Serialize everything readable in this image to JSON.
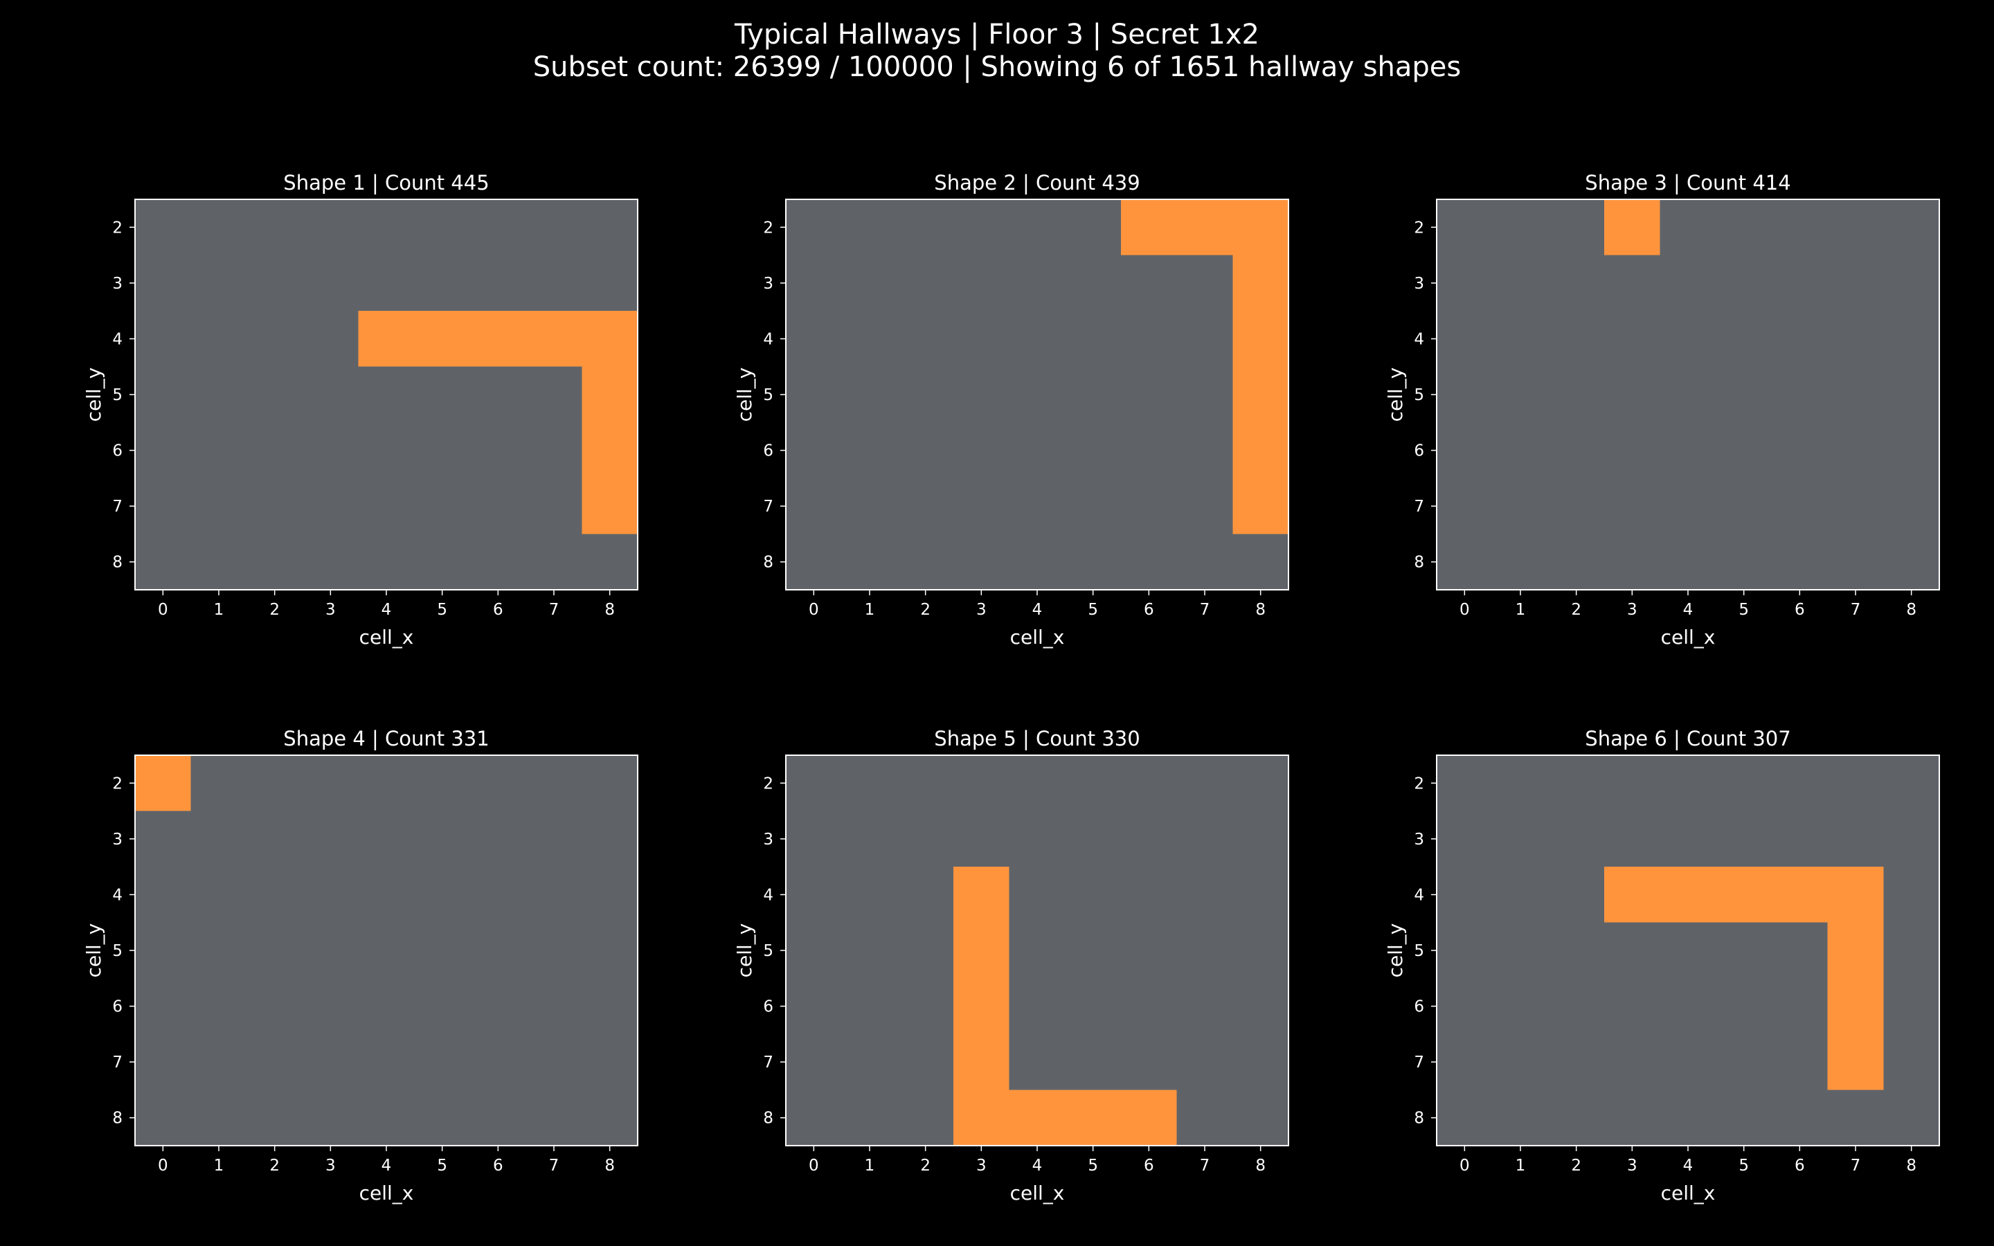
{
  "figure": {
    "title_line1": "Typical Hallways | Floor 3 | Secret 1x2",
    "title_line2": "Subset count: 26399 / 100000 | Showing 6 of 1651 hallway shapes"
  },
  "colors": {
    "background": "#000000",
    "grid_empty": "#5f6368",
    "hallway": "#ff943d",
    "text": "#ffffff",
    "axes_frame": "#ffffff"
  },
  "chart_data": [
    {
      "type": "heatmap",
      "title": "Shape 1 | Count 445",
      "xlabel": "cell_x",
      "ylabel": "cell_y",
      "x_ticks": [
        0,
        1,
        2,
        3,
        4,
        5,
        6,
        7,
        8
      ],
      "y_ticks": [
        2,
        3,
        4,
        5,
        6,
        7,
        8
      ],
      "xlim": [
        -0.5,
        8.5
      ],
      "ylim": [
        1.5,
        8.5
      ],
      "y_inverted": true,
      "cells": [
        [
          4,
          4
        ],
        [
          5,
          4
        ],
        [
          6,
          4
        ],
        [
          7,
          4
        ],
        [
          8,
          4
        ],
        [
          8,
          5
        ],
        [
          8,
          6
        ],
        [
          8,
          7
        ]
      ]
    },
    {
      "type": "heatmap",
      "title": "Shape 2 | Count 439",
      "xlabel": "cell_x",
      "ylabel": "cell_y",
      "x_ticks": [
        0,
        1,
        2,
        3,
        4,
        5,
        6,
        7,
        8
      ],
      "y_ticks": [
        2,
        3,
        4,
        5,
        6,
        7,
        8
      ],
      "xlim": [
        -0.5,
        8.5
      ],
      "ylim": [
        1.5,
        8.5
      ],
      "y_inverted": true,
      "cells": [
        [
          6,
          2
        ],
        [
          7,
          2
        ],
        [
          8,
          2
        ],
        [
          8,
          3
        ],
        [
          8,
          4
        ],
        [
          8,
          5
        ],
        [
          8,
          6
        ],
        [
          8,
          7
        ]
      ]
    },
    {
      "type": "heatmap",
      "title": "Shape 3 | Count 414",
      "xlabel": "cell_x",
      "ylabel": "cell_y",
      "x_ticks": [
        0,
        1,
        2,
        3,
        4,
        5,
        6,
        7,
        8
      ],
      "y_ticks": [
        2,
        3,
        4,
        5,
        6,
        7,
        8
      ],
      "xlim": [
        -0.5,
        8.5
      ],
      "ylim": [
        1.5,
        8.5
      ],
      "y_inverted": true,
      "cells": [
        [
          3,
          2
        ]
      ]
    },
    {
      "type": "heatmap",
      "title": "Shape 4 | Count 331",
      "xlabel": "cell_x",
      "ylabel": "cell_y",
      "x_ticks": [
        0,
        1,
        2,
        3,
        4,
        5,
        6,
        7,
        8
      ],
      "y_ticks": [
        2,
        3,
        4,
        5,
        6,
        7,
        8
      ],
      "xlim": [
        -0.5,
        8.5
      ],
      "ylim": [
        1.5,
        8.5
      ],
      "y_inverted": true,
      "cells": [
        [
          0,
          2
        ]
      ]
    },
    {
      "type": "heatmap",
      "title": "Shape 5 | Count 330",
      "xlabel": "cell_x",
      "ylabel": "cell_y",
      "x_ticks": [
        0,
        1,
        2,
        3,
        4,
        5,
        6,
        7,
        8
      ],
      "y_ticks": [
        2,
        3,
        4,
        5,
        6,
        7,
        8
      ],
      "xlim": [
        -0.5,
        8.5
      ],
      "ylim": [
        1.5,
        8.5
      ],
      "y_inverted": true,
      "cells": [
        [
          3,
          4
        ],
        [
          3,
          5
        ],
        [
          3,
          6
        ],
        [
          3,
          7
        ],
        [
          3,
          8
        ],
        [
          4,
          8
        ],
        [
          5,
          8
        ],
        [
          6,
          8
        ]
      ]
    },
    {
      "type": "heatmap",
      "title": "Shape 6 | Count 307",
      "xlabel": "cell_x",
      "ylabel": "cell_y",
      "x_ticks": [
        0,
        1,
        2,
        3,
        4,
        5,
        6,
        7,
        8
      ],
      "y_ticks": [
        2,
        3,
        4,
        5,
        6,
        7,
        8
      ],
      "xlim": [
        -0.5,
        8.5
      ],
      "ylim": [
        1.5,
        8.5
      ],
      "y_inverted": true,
      "cells": [
        [
          3,
          4
        ],
        [
          4,
          4
        ],
        [
          5,
          4
        ],
        [
          6,
          4
        ],
        [
          7,
          4
        ],
        [
          7,
          5
        ],
        [
          7,
          6
        ],
        [
          7,
          7
        ]
      ]
    }
  ]
}
